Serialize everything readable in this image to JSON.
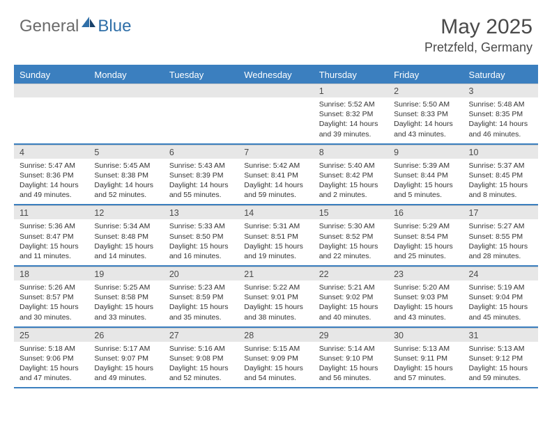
{
  "brand": {
    "general": "General",
    "blue": "Blue"
  },
  "title": "May 2025",
  "location": "Pretzfeld, Germany",
  "colors": {
    "header_bg": "#3b7fbf",
    "header_text": "#ffffff",
    "daynum_bg": "#e7e7e7",
    "border": "#3b7fbf",
    "logo_gray": "#6b6b6b",
    "logo_blue": "#2f6fa8",
    "text": "#333333"
  },
  "weekdays": [
    "Sunday",
    "Monday",
    "Tuesday",
    "Wednesday",
    "Thursday",
    "Friday",
    "Saturday"
  ],
  "weeks": [
    {
      "nums": [
        "",
        "",
        "",
        "",
        "1",
        "2",
        "3"
      ],
      "cells": [
        null,
        null,
        null,
        null,
        {
          "sr": "Sunrise: 5:52 AM",
          "ss": "Sunset: 8:32 PM",
          "d1": "Daylight: 14 hours",
          "d2": "and 39 minutes."
        },
        {
          "sr": "Sunrise: 5:50 AM",
          "ss": "Sunset: 8:33 PM",
          "d1": "Daylight: 14 hours",
          "d2": "and 43 minutes."
        },
        {
          "sr": "Sunrise: 5:48 AM",
          "ss": "Sunset: 8:35 PM",
          "d1": "Daylight: 14 hours",
          "d2": "and 46 minutes."
        }
      ]
    },
    {
      "nums": [
        "4",
        "5",
        "6",
        "7",
        "8",
        "9",
        "10"
      ],
      "cells": [
        {
          "sr": "Sunrise: 5:47 AM",
          "ss": "Sunset: 8:36 PM",
          "d1": "Daylight: 14 hours",
          "d2": "and 49 minutes."
        },
        {
          "sr": "Sunrise: 5:45 AM",
          "ss": "Sunset: 8:38 PM",
          "d1": "Daylight: 14 hours",
          "d2": "and 52 minutes."
        },
        {
          "sr": "Sunrise: 5:43 AM",
          "ss": "Sunset: 8:39 PM",
          "d1": "Daylight: 14 hours",
          "d2": "and 55 minutes."
        },
        {
          "sr": "Sunrise: 5:42 AM",
          "ss": "Sunset: 8:41 PM",
          "d1": "Daylight: 14 hours",
          "d2": "and 59 minutes."
        },
        {
          "sr": "Sunrise: 5:40 AM",
          "ss": "Sunset: 8:42 PM",
          "d1": "Daylight: 15 hours",
          "d2": "and 2 minutes."
        },
        {
          "sr": "Sunrise: 5:39 AM",
          "ss": "Sunset: 8:44 PM",
          "d1": "Daylight: 15 hours",
          "d2": "and 5 minutes."
        },
        {
          "sr": "Sunrise: 5:37 AM",
          "ss": "Sunset: 8:45 PM",
          "d1": "Daylight: 15 hours",
          "d2": "and 8 minutes."
        }
      ]
    },
    {
      "nums": [
        "11",
        "12",
        "13",
        "14",
        "15",
        "16",
        "17"
      ],
      "cells": [
        {
          "sr": "Sunrise: 5:36 AM",
          "ss": "Sunset: 8:47 PM",
          "d1": "Daylight: 15 hours",
          "d2": "and 11 minutes."
        },
        {
          "sr": "Sunrise: 5:34 AM",
          "ss": "Sunset: 8:48 PM",
          "d1": "Daylight: 15 hours",
          "d2": "and 14 minutes."
        },
        {
          "sr": "Sunrise: 5:33 AM",
          "ss": "Sunset: 8:50 PM",
          "d1": "Daylight: 15 hours",
          "d2": "and 16 minutes."
        },
        {
          "sr": "Sunrise: 5:31 AM",
          "ss": "Sunset: 8:51 PM",
          "d1": "Daylight: 15 hours",
          "d2": "and 19 minutes."
        },
        {
          "sr": "Sunrise: 5:30 AM",
          "ss": "Sunset: 8:52 PM",
          "d1": "Daylight: 15 hours",
          "d2": "and 22 minutes."
        },
        {
          "sr": "Sunrise: 5:29 AM",
          "ss": "Sunset: 8:54 PM",
          "d1": "Daylight: 15 hours",
          "d2": "and 25 minutes."
        },
        {
          "sr": "Sunrise: 5:27 AM",
          "ss": "Sunset: 8:55 PM",
          "d1": "Daylight: 15 hours",
          "d2": "and 28 minutes."
        }
      ]
    },
    {
      "nums": [
        "18",
        "19",
        "20",
        "21",
        "22",
        "23",
        "24"
      ],
      "cells": [
        {
          "sr": "Sunrise: 5:26 AM",
          "ss": "Sunset: 8:57 PM",
          "d1": "Daylight: 15 hours",
          "d2": "and 30 minutes."
        },
        {
          "sr": "Sunrise: 5:25 AM",
          "ss": "Sunset: 8:58 PM",
          "d1": "Daylight: 15 hours",
          "d2": "and 33 minutes."
        },
        {
          "sr": "Sunrise: 5:23 AM",
          "ss": "Sunset: 8:59 PM",
          "d1": "Daylight: 15 hours",
          "d2": "and 35 minutes."
        },
        {
          "sr": "Sunrise: 5:22 AM",
          "ss": "Sunset: 9:01 PM",
          "d1": "Daylight: 15 hours",
          "d2": "and 38 minutes."
        },
        {
          "sr": "Sunrise: 5:21 AM",
          "ss": "Sunset: 9:02 PM",
          "d1": "Daylight: 15 hours",
          "d2": "and 40 minutes."
        },
        {
          "sr": "Sunrise: 5:20 AM",
          "ss": "Sunset: 9:03 PM",
          "d1": "Daylight: 15 hours",
          "d2": "and 43 minutes."
        },
        {
          "sr": "Sunrise: 5:19 AM",
          "ss": "Sunset: 9:04 PM",
          "d1": "Daylight: 15 hours",
          "d2": "and 45 minutes."
        }
      ]
    },
    {
      "nums": [
        "25",
        "26",
        "27",
        "28",
        "29",
        "30",
        "31"
      ],
      "cells": [
        {
          "sr": "Sunrise: 5:18 AM",
          "ss": "Sunset: 9:06 PM",
          "d1": "Daylight: 15 hours",
          "d2": "and 47 minutes."
        },
        {
          "sr": "Sunrise: 5:17 AM",
          "ss": "Sunset: 9:07 PM",
          "d1": "Daylight: 15 hours",
          "d2": "and 49 minutes."
        },
        {
          "sr": "Sunrise: 5:16 AM",
          "ss": "Sunset: 9:08 PM",
          "d1": "Daylight: 15 hours",
          "d2": "and 52 minutes."
        },
        {
          "sr": "Sunrise: 5:15 AM",
          "ss": "Sunset: 9:09 PM",
          "d1": "Daylight: 15 hours",
          "d2": "and 54 minutes."
        },
        {
          "sr": "Sunrise: 5:14 AM",
          "ss": "Sunset: 9:10 PM",
          "d1": "Daylight: 15 hours",
          "d2": "and 56 minutes."
        },
        {
          "sr": "Sunrise: 5:13 AM",
          "ss": "Sunset: 9:11 PM",
          "d1": "Daylight: 15 hours",
          "d2": "and 57 minutes."
        },
        {
          "sr": "Sunrise: 5:13 AM",
          "ss": "Sunset: 9:12 PM",
          "d1": "Daylight: 15 hours",
          "d2": "and 59 minutes."
        }
      ]
    }
  ]
}
